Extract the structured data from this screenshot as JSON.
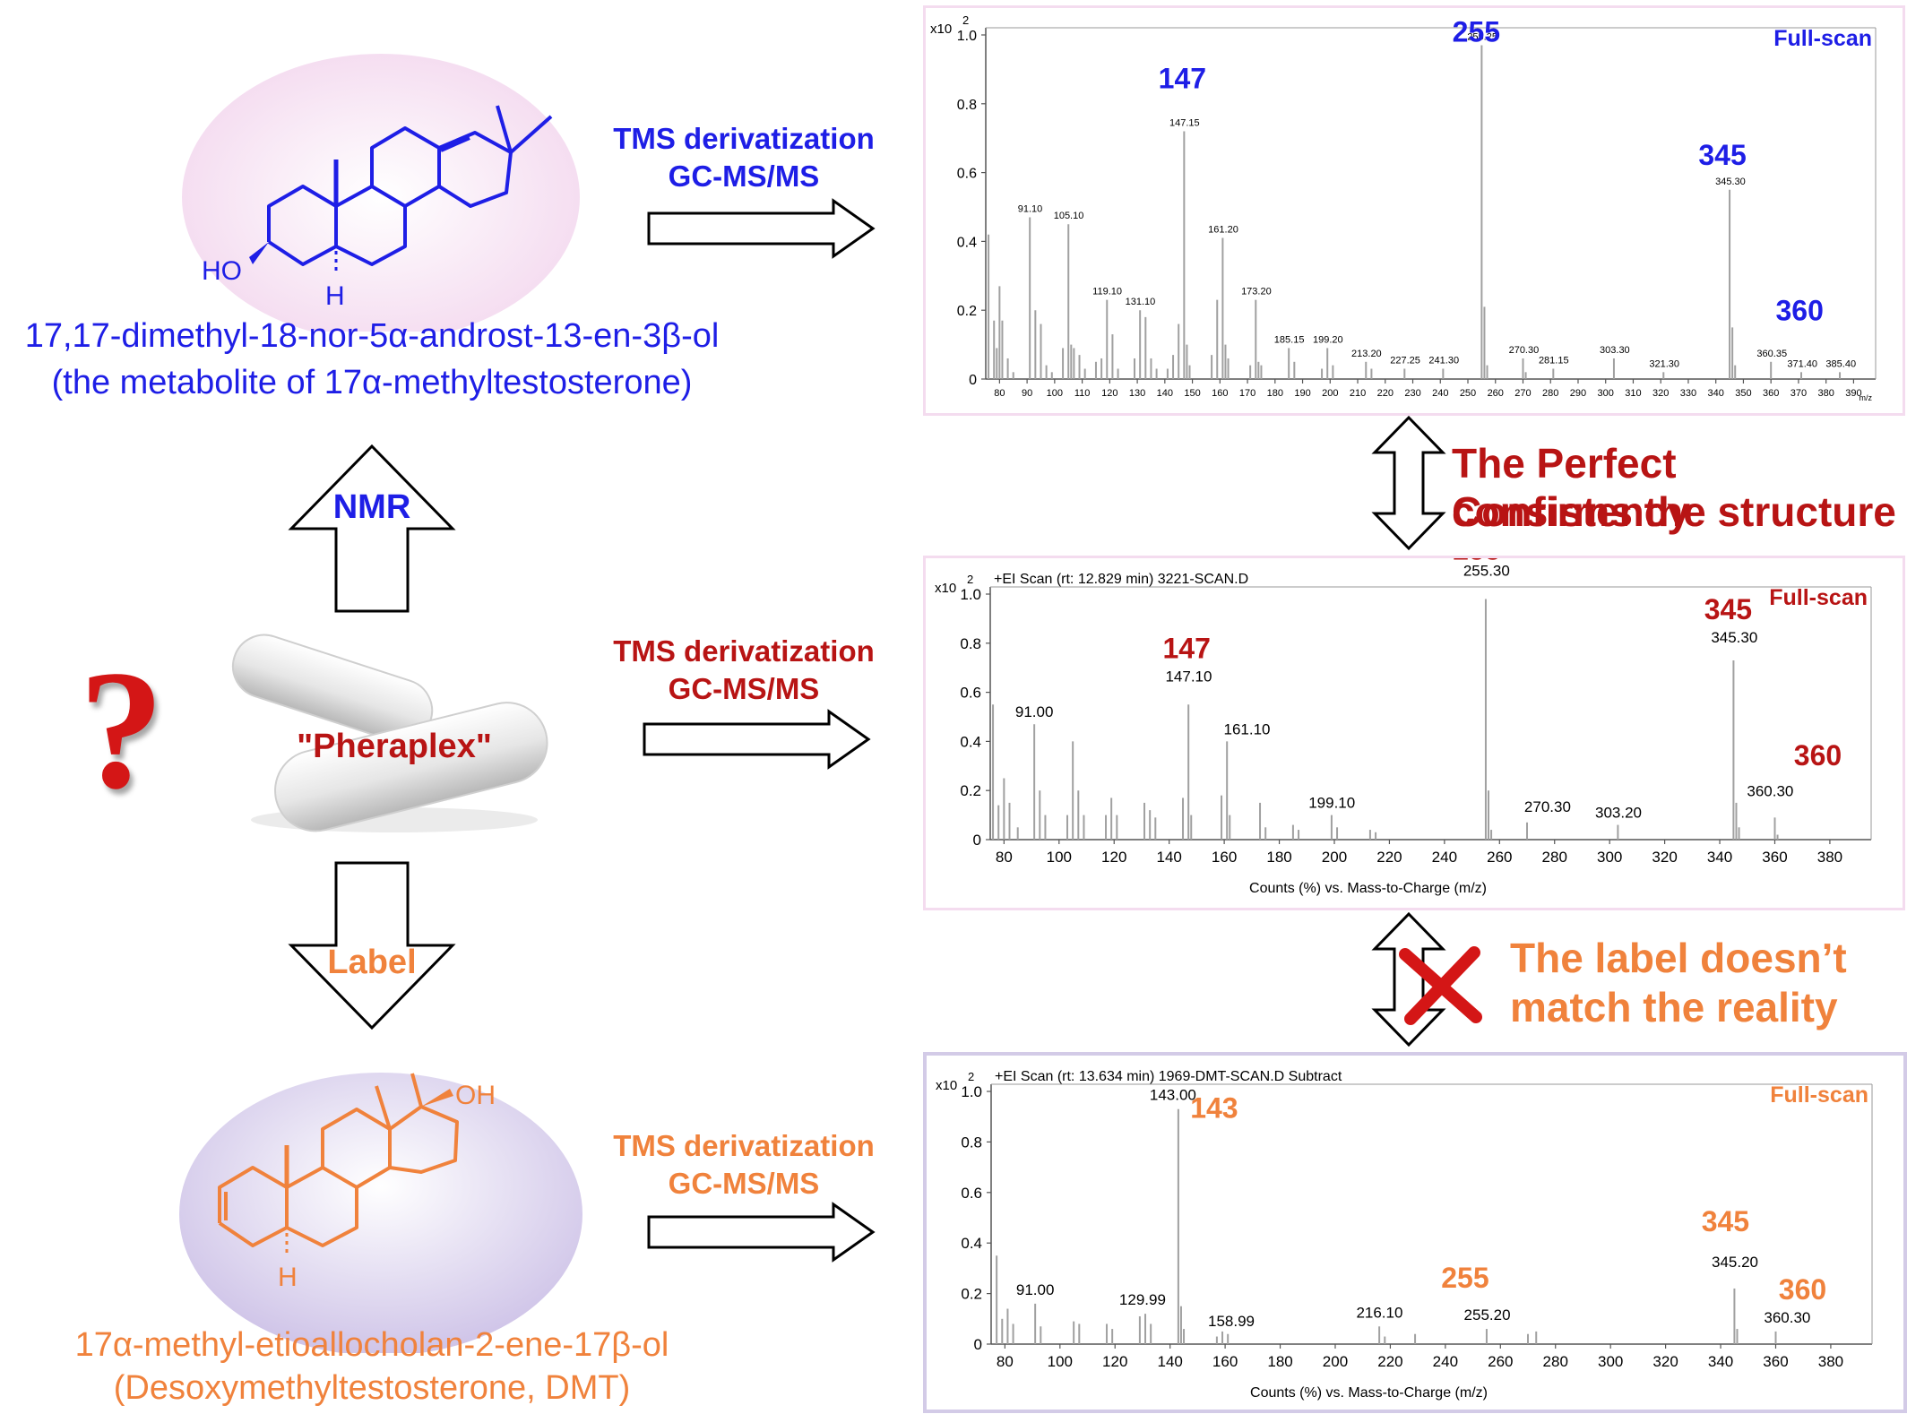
{
  "top_molecule": {
    "name_line1": "17,17-dimethyl-18-nor-5α-androst-13-en-3β-ol",
    "name_line2": "(the metabolite of 17α-methyltestosterone)",
    "ho_label": "HO",
    "h_label": "H",
    "color": "#1e1ee6",
    "bg": "#f6e2f3"
  },
  "bottom_molecule": {
    "name_line1": "17α-methyl-etioallocholan-2-ene-17β-ol",
    "name_line2": "(Desoxymethyltestosterone, DMT)",
    "oh_label": "OH",
    "h_label": "H",
    "color": "#f0823c",
    "bg": "#d8cfec"
  },
  "center": {
    "product_label": "\"Pheraplex\"",
    "question_mark": "?",
    "nmr_label": "NMR",
    "label_label": "Label"
  },
  "methods": {
    "top": {
      "line1": "TMS derivatization",
      "line2": "GC-MS/MS"
    },
    "middle": {
      "line1": "TMS derivatization",
      "line2": "GC-MS/MS"
    },
    "bottom": {
      "line1": "TMS derivatization",
      "line2": "GC-MS/MS"
    }
  },
  "messages": {
    "consistent_line1": "The Perfect consistency",
    "consistent_line2": "Confirms the structure",
    "mismatch_line1": "The label doesn’t",
    "mismatch_line2": "match the reality"
  },
  "colors": {
    "blue": "#1e1ee6",
    "red": "#b81414",
    "orange": "#f0823c",
    "bar": "#a0a0a0"
  },
  "chart_data": [
    {
      "type": "bar",
      "mode": "Full-scan",
      "scan_info": "",
      "y_multiplier": "x10",
      "y_exponent": "2",
      "ylim": [
        0,
        1.0
      ],
      "xlim": [
        75,
        398
      ],
      "yticks": [
        "0",
        "0.2",
        "0.4",
        "0.6",
        "0.8",
        "1.0"
      ],
      "xticks": [
        "80",
        "90",
        "100",
        "110",
        "120",
        "130",
        "140",
        "150",
        "160",
        "170",
        "180",
        "190",
        "200",
        "210",
        "220",
        "230",
        "240",
        "250",
        "260",
        "270",
        "280",
        "290",
        "300",
        "310",
        "320",
        "330",
        "340",
        "350",
        "360",
        "370",
        "380",
        "390"
      ],
      "x_unit": "m/z",
      "xlabel": "",
      "peaks": [
        [
          76,
          0.42
        ],
        [
          78,
          0.17
        ],
        [
          79,
          0.09
        ],
        [
          80,
          0.27
        ],
        [
          81,
          0.17
        ],
        [
          83,
          0.06
        ],
        [
          85,
          0.02
        ],
        [
          91,
          0.47
        ],
        [
          93,
          0.2
        ],
        [
          95,
          0.16
        ],
        [
          97,
          0.04
        ],
        [
          99,
          0.02
        ],
        [
          103,
          0.09
        ],
        [
          105,
          0.45
        ],
        [
          106,
          0.1
        ],
        [
          107,
          0.09
        ],
        [
          109,
          0.07
        ],
        [
          111,
          0.03
        ],
        [
          115,
          0.05
        ],
        [
          117,
          0.06
        ],
        [
          119,
          0.23
        ],
        [
          121,
          0.13
        ],
        [
          123,
          0.03
        ],
        [
          129,
          0.06
        ],
        [
          131,
          0.2
        ],
        [
          133,
          0.18
        ],
        [
          135,
          0.06
        ],
        [
          137,
          0.03
        ],
        [
          141,
          0.03
        ],
        [
          143,
          0.07
        ],
        [
          145,
          0.16
        ],
        [
          147,
          0.72
        ],
        [
          148,
          0.1
        ],
        [
          149,
          0.04
        ],
        [
          157,
          0.07
        ],
        [
          159,
          0.23
        ],
        [
          161,
          0.41
        ],
        [
          162,
          0.1
        ],
        [
          163,
          0.06
        ],
        [
          171,
          0.04
        ],
        [
          173,
          0.23
        ],
        [
          174,
          0.05
        ],
        [
          175,
          0.04
        ],
        [
          185,
          0.09
        ],
        [
          187,
          0.05
        ],
        [
          197,
          0.03
        ],
        [
          199,
          0.09
        ],
        [
          201,
          0.04
        ],
        [
          213,
          0.05
        ],
        [
          215,
          0.03
        ],
        [
          227,
          0.03
        ],
        [
          241,
          0.03
        ],
        [
          255,
          0.97
        ],
        [
          256,
          0.21
        ],
        [
          257,
          0.04
        ],
        [
          270,
          0.06
        ],
        [
          271,
          0.02
        ],
        [
          281,
          0.03
        ],
        [
          303,
          0.06
        ],
        [
          321,
          0.02
        ],
        [
          345,
          0.55
        ],
        [
          346,
          0.15
        ],
        [
          347,
          0.04
        ],
        [
          360,
          0.05
        ],
        [
          371,
          0.02
        ],
        [
          385,
          0.02
        ]
      ],
      "peak_labels": [
        {
          "x": 91.1,
          "y": 0.47,
          "text": "91.10"
        },
        {
          "x": 105.1,
          "y": 0.45,
          "text": "105.10"
        },
        {
          "x": 119.1,
          "y": 0.23,
          "text": "119.10"
        },
        {
          "x": 131.1,
          "y": 0.2,
          "text": "131.10"
        },
        {
          "x": 147.15,
          "y": 0.72,
          "text": "147.15"
        },
        {
          "x": 161.2,
          "y": 0.41,
          "text": "161.20"
        },
        {
          "x": 173.2,
          "y": 0.23,
          "text": "173.20"
        },
        {
          "x": 185.15,
          "y": 0.09,
          "text": "185.15"
        },
        {
          "x": 199.2,
          "y": 0.09,
          "text": "199.20"
        },
        {
          "x": 213.2,
          "y": 0.05,
          "text": "213.20"
        },
        {
          "x": 227.25,
          "y": 0.03,
          "text": "227.25"
        },
        {
          "x": 241.3,
          "y": 0.03,
          "text": "241.30"
        },
        {
          "x": 255.25,
          "y": 0.97,
          "text": "255.25"
        },
        {
          "x": 270.3,
          "y": 0.06,
          "text": "270.30"
        },
        {
          "x": 281.15,
          "y": 0.03,
          "text": "281.15"
        },
        {
          "x": 303.3,
          "y": 0.06,
          "text": "303.30"
        },
        {
          "x": 321.3,
          "y": 0.02,
          "text": "321.30"
        },
        {
          "x": 345.3,
          "y": 0.55,
          "text": "345.30"
        },
        {
          "x": 360.35,
          "y": 0.05,
          "text": "360.35"
        },
        {
          "x": 371.4,
          "y": 0.02,
          "text": "371.40"
        },
        {
          "x": 385.4,
          "y": 0.02,
          "text": "385.40"
        }
      ],
      "ion_labels": [
        {
          "x": 147,
          "y": 0.72,
          "text": "147"
        },
        {
          "x": 255,
          "y": 0.97,
          "text": "255"
        },
        {
          "x": 345,
          "y": 0.55,
          "text": "345"
        },
        {
          "x": 360,
          "y": 0.15,
          "text": "360"
        }
      ]
    },
    {
      "type": "bar",
      "mode": "Full-scan",
      "scan_info": "+EI Scan (rt: 12.829 min) 3221-SCAN.D",
      "y_multiplier": "x10",
      "y_exponent": "2",
      "ylim": [
        0,
        1.0
      ],
      "xlim": [
        75,
        395
      ],
      "yticks": [
        "0",
        "0.2",
        "0.4",
        "0.6",
        "0.8",
        "1.0"
      ],
      "xticks": [
        "80",
        "100",
        "120",
        "140",
        "160",
        "180",
        "200",
        "220",
        "240",
        "260",
        "280",
        "300",
        "320",
        "340",
        "360",
        "380"
      ],
      "x_unit": "",
      "xlabel": "Counts (%) vs. Mass-to-Charge (m/z)",
      "peaks": [
        [
          76,
          0.55
        ],
        [
          78,
          0.14
        ],
        [
          80,
          0.25
        ],
        [
          82,
          0.15
        ],
        [
          85,
          0.05
        ],
        [
          91,
          0.47
        ],
        [
          93,
          0.2
        ],
        [
          95,
          0.1
        ],
        [
          103,
          0.1
        ],
        [
          105,
          0.4
        ],
        [
          107,
          0.2
        ],
        [
          109,
          0.1
        ],
        [
          117,
          0.1
        ],
        [
          119,
          0.17
        ],
        [
          121,
          0.1
        ],
        [
          131,
          0.15
        ],
        [
          133,
          0.12
        ],
        [
          135,
          0.09
        ],
        [
          145,
          0.17
        ],
        [
          147,
          0.55
        ],
        [
          148,
          0.1
        ],
        [
          159,
          0.18
        ],
        [
          161,
          0.4
        ],
        [
          162,
          0.1
        ],
        [
          173,
          0.15
        ],
        [
          175,
          0.05
        ],
        [
          185,
          0.06
        ],
        [
          187,
          0.04
        ],
        [
          199,
          0.1
        ],
        [
          201,
          0.05
        ],
        [
          213,
          0.04
        ],
        [
          215,
          0.03
        ],
        [
          255,
          0.98
        ],
        [
          256,
          0.2
        ],
        [
          257,
          0.04
        ],
        [
          270,
          0.07
        ],
        [
          303,
          0.06
        ],
        [
          345,
          0.73
        ],
        [
          346,
          0.15
        ],
        [
          347,
          0.05
        ],
        [
          360,
          0.09
        ],
        [
          361,
          0.02
        ]
      ],
      "peak_labels": [
        {
          "x": 91.0,
          "y": 0.47,
          "text": "91.00"
        },
        {
          "x": 147.1,
          "y": 0.55,
          "text": "147.10"
        },
        {
          "x": 161.1,
          "y": 0.4,
          "text": "161.10"
        },
        {
          "x": 199.1,
          "y": 0.1,
          "text": "199.10"
        },
        {
          "x": 255.3,
          "y": 0.98,
          "text": "255.30"
        },
        {
          "x": 270.3,
          "y": 0.07,
          "text": "270.30"
        },
        {
          "x": 303.2,
          "y": 0.06,
          "text": "303.20"
        },
        {
          "x": 345.3,
          "y": 0.73,
          "text": "345.30"
        },
        {
          "x": 360.3,
          "y": 0.09,
          "text": "360.30"
        }
      ],
      "ion_labels": [
        {
          "x": 147,
          "y": 0.55,
          "text": "147"
        },
        {
          "x": 255,
          "y": 0.98,
          "text": "255"
        },
        {
          "x": 345,
          "y": 0.73,
          "text": "345"
        },
        {
          "x": 360,
          "y": 0.2,
          "text": "360"
        }
      ]
    },
    {
      "type": "bar",
      "mode": "Full-scan",
      "scan_info": "+EI Scan (rt: 13.634 min) 1969-DMT-SCAN.D  Subtract",
      "y_multiplier": "x10",
      "y_exponent": "2",
      "ylim": [
        0,
        1.0
      ],
      "xlim": [
        75,
        395
      ],
      "yticks": [
        "0",
        "0.2",
        "0.4",
        "0.6",
        "0.8",
        "1.0"
      ],
      "xticks": [
        "80",
        "100",
        "120",
        "140",
        "160",
        "180",
        "200",
        "220",
        "240",
        "260",
        "280",
        "300",
        "320",
        "340",
        "360",
        "380"
      ],
      "x_unit": "",
      "xlabel": "Counts (%) vs. Mass-to-Charge (m/z)",
      "peaks": [
        [
          77,
          0.35
        ],
        [
          79,
          0.1
        ],
        [
          81,
          0.14
        ],
        [
          83,
          0.08
        ],
        [
          91,
          0.16
        ],
        [
          93,
          0.07
        ],
        [
          105,
          0.09
        ],
        [
          107,
          0.08
        ],
        [
          117,
          0.08
        ],
        [
          119,
          0.06
        ],
        [
          129,
          0.11
        ],
        [
          131,
          0.12
        ],
        [
          133,
          0.08
        ],
        [
          143,
          0.93
        ],
        [
          144,
          0.15
        ],
        [
          145,
          0.06
        ],
        [
          157,
          0.03
        ],
        [
          159,
          0.05
        ],
        [
          161,
          0.04
        ],
        [
          216,
          0.07
        ],
        [
          218,
          0.03
        ],
        [
          229,
          0.04
        ],
        [
          255,
          0.06
        ],
        [
          270,
          0.04
        ],
        [
          273,
          0.05
        ],
        [
          345,
          0.22
        ],
        [
          346,
          0.06
        ],
        [
          360,
          0.05
        ]
      ],
      "peak_labels": [
        {
          "x": 91.0,
          "y": 0.16,
          "text": "91.00"
        },
        {
          "x": 129.99,
          "y": 0.12,
          "text": "129.99"
        },
        {
          "x": 143.0,
          "y": 0.93,
          "text": "143.00"
        },
        {
          "x": 158.99,
          "y": 0.05,
          "text": "158.99"
        },
        {
          "x": 216.1,
          "y": 0.07,
          "text": "216.10"
        },
        {
          "x": 255.2,
          "y": 0.06,
          "text": "255.20"
        },
        {
          "x": 345.2,
          "y": 0.22,
          "text": "345.20"
        },
        {
          "x": 360.3,
          "y": 0.05,
          "text": "360.30"
        }
      ],
      "ion_labels": [
        {
          "x": 143,
          "y": 0.93,
          "text": "143"
        },
        {
          "x": 255,
          "y": 0.06,
          "text": "255"
        },
        {
          "x": 345,
          "y": 0.22,
          "text": "345"
        },
        {
          "x": 360,
          "y": 0.05,
          "text": "360"
        }
      ]
    }
  ]
}
